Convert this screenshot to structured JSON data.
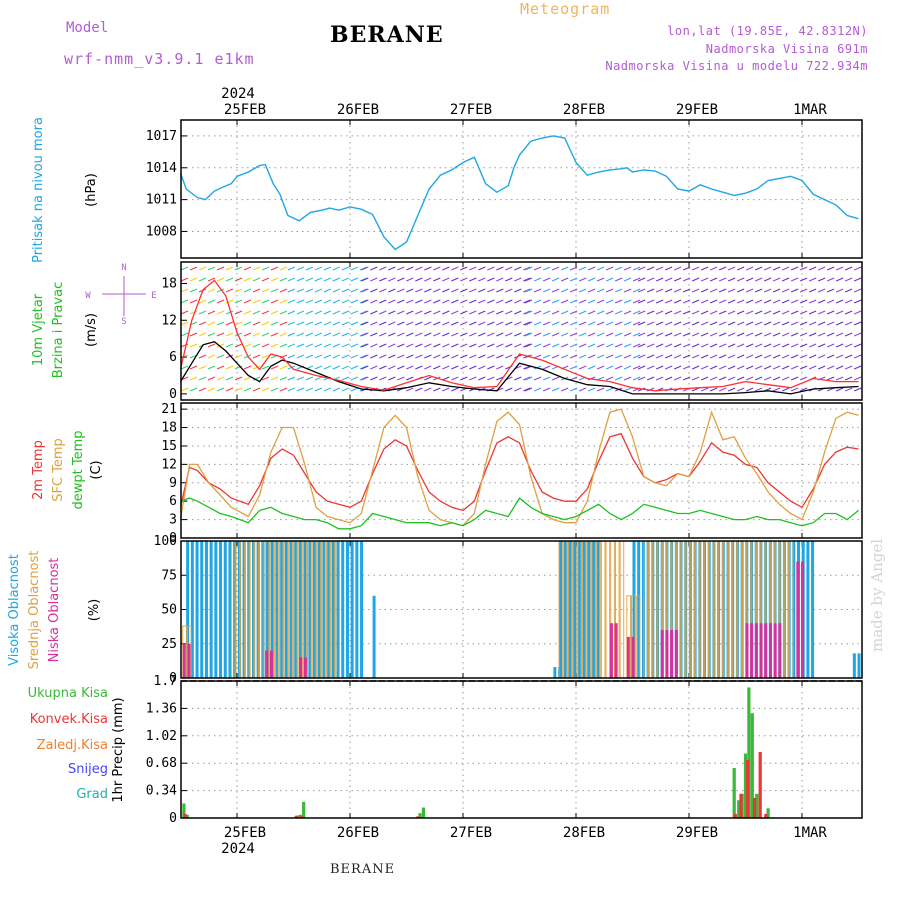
{
  "header": {
    "model_label": "Model",
    "model_name": "wrf-nmm_v3.9.1 e1km",
    "station": "BERANE",
    "meteogram": "Meteogram",
    "coords": "lon,lat (19.85E, 42.8312N)",
    "elevation": "Nadmorska Visina 691m",
    "model_elevation": "Nadmorska Visina u modelu 722.934m"
  },
  "footer": {
    "station": "BERANE"
  },
  "watermark": "made by Angel",
  "time_axis": {
    "labels": [
      "25FEB",
      "26FEB",
      "27FEB",
      "28FEB",
      "29FEB",
      "1MAR"
    ],
    "year": "2024",
    "colors": {
      "axis": "#000000",
      "grid": "#9a9a9a"
    }
  },
  "chart_data": [
    {
      "type": "line",
      "panel": "pressure",
      "ylabel_rotated": "Pritisak na nivou mora",
      "unit": "(hPa)",
      "yticks": [
        1008,
        1011,
        1014,
        1017
      ],
      "ylim": [
        1005.5,
        1018.5
      ],
      "x_days": [
        -0.5,
        -0.45,
        -0.35,
        -0.28,
        -0.2,
        -0.12,
        -0.05,
        0.0,
        0.1,
        0.2,
        0.25,
        0.32,
        0.38,
        0.45,
        0.55,
        0.65,
        0.75,
        0.82,
        0.9,
        1.0,
        1.1,
        1.2,
        1.3,
        1.4,
        1.5,
        1.6,
        1.7,
        1.8,
        1.9,
        2.0,
        2.1,
        2.2,
        2.3,
        2.4,
        2.45,
        2.5,
        2.6,
        2.7,
        2.8,
        2.9,
        3.0,
        3.1,
        3.2,
        3.3,
        3.4,
        3.45,
        3.5,
        3.6,
        3.7,
        3.8,
        3.9,
        4.0,
        4.1,
        4.2,
        4.3,
        4.4,
        4.5,
        4.6,
        4.7,
        4.8,
        4.9,
        5.0,
        5.1,
        5.2,
        5.3,
        5.4,
        5.5
      ],
      "series": [
        {
          "color": "#1ea6e6",
          "values": [
            1013.5,
            1012.0,
            1011.2,
            1011.0,
            1011.8,
            1012.2,
            1012.5,
            1013.2,
            1013.6,
            1014.2,
            1014.3,
            1012.5,
            1011.5,
            1009.5,
            1009.0,
            1009.8,
            1010.0,
            1010.2,
            1010.0,
            1010.3,
            1010.1,
            1009.6,
            1007.5,
            1006.3,
            1007.0,
            1009.5,
            1012.0,
            1013.3,
            1013.8,
            1014.5,
            1015.0,
            1012.5,
            1011.7,
            1012.3,
            1014.0,
            1015.2,
            1016.5,
            1016.8,
            1017.0,
            1016.8,
            1014.5,
            1013.3,
            1013.6,
            1013.8,
            1013.9,
            1014.0,
            1013.6,
            1013.8,
            1013.7,
            1013.2,
            1012.0,
            1011.8,
            1012.4,
            1012.0,
            1011.7,
            1011.4,
            1011.6,
            1012.0,
            1012.8,
            1013.0,
            1013.2,
            1012.8,
            1011.5,
            1011.0,
            1010.5,
            1009.5,
            1009.2
          ]
        }
      ]
    },
    {
      "type": "line",
      "panel": "wind",
      "ylabel_rotated_1": "10m Vjetar",
      "ylabel_rotated_2": "Brzina i Pravac",
      "unit": "(m/s)",
      "compass": {
        "n": "N",
        "s": "S",
        "w": "W",
        "e": "E"
      },
      "yticks": [
        0,
        6,
        12,
        18
      ],
      "ylim": [
        -1,
        21.5
      ],
      "x_days": [
        -0.5,
        -0.4,
        -0.3,
        -0.2,
        -0.1,
        0.0,
        0.1,
        0.2,
        0.3,
        0.4,
        0.5,
        0.7,
        0.9,
        1.1,
        1.3,
        1.5,
        1.7,
        1.9,
        2.1,
        2.3,
        2.5,
        2.7,
        2.9,
        3.1,
        3.3,
        3.5,
        3.7,
        3.9,
        4.1,
        4.3,
        4.5,
        4.7,
        4.9,
        5.1,
        5.3,
        5.5
      ],
      "series": [
        {
          "name": "speed",
          "color": "#000000",
          "values": [
            2.0,
            5.0,
            8.0,
            8.5,
            7.0,
            5.0,
            3.0,
            2.0,
            4.5,
            5.5,
            5.0,
            3.5,
            2.0,
            0.8,
            0.5,
            1.0,
            1.8,
            1.2,
            0.8,
            0.5,
            5.0,
            4.0,
            2.5,
            1.5,
            1.2,
            0.0,
            0.0,
            0.0,
            0.0,
            0.0,
            0.2,
            0.5,
            0.0,
            0.8,
            1.0,
            1.2
          ]
        },
        {
          "name": "gust",
          "color": "#ff3030",
          "values": [
            4.0,
            12.0,
            17.0,
            18.5,
            16.0,
            10.0,
            6.0,
            4.0,
            6.5,
            6.0,
            4.0,
            3.0,
            2.2,
            1.2,
            0.6,
            1.8,
            3.0,
            1.8,
            1.0,
            1.2,
            6.5,
            5.5,
            4.0,
            2.5,
            2.0,
            1.0,
            0.5,
            0.8,
            1.0,
            1.2,
            2.0,
            1.5,
            1.0,
            2.5,
            2.0,
            2.0
          ]
        }
      ]
    },
    {
      "type": "line",
      "panel": "temperature",
      "ylabel_rotated_1": "2m Temp",
      "ylabel_rotated_2": "SFC Temp",
      "ylabel_rotated_3": "dewpt Temp",
      "unit": "(C)",
      "yticks": [
        0,
        3,
        6,
        9,
        12,
        15,
        18,
        21
      ],
      "ylim": [
        0,
        22
      ],
      "x_days": [
        -0.5,
        -0.42,
        -0.35,
        -0.25,
        -0.15,
        -0.05,
        0.1,
        0.2,
        0.3,
        0.4,
        0.5,
        0.6,
        0.7,
        0.8,
        0.9,
        1.0,
        1.1,
        1.2,
        1.3,
        1.4,
        1.5,
        1.6,
        1.7,
        1.8,
        1.9,
        2.0,
        2.1,
        2.2,
        2.3,
        2.4,
        2.5,
        2.6,
        2.7,
        2.8,
        2.9,
        3.0,
        3.1,
        3.2,
        3.3,
        3.4,
        3.5,
        3.6,
        3.7,
        3.8,
        3.9,
        4.0,
        4.1,
        4.2,
        4.3,
        4.4,
        4.5,
        4.6,
        4.7,
        4.8,
        4.9,
        5.0,
        5.1,
        5.2,
        5.3,
        5.4,
        5.5
      ],
      "series": [
        {
          "name": "2m Temp",
          "color": "#ee3535",
          "values": [
            5.0,
            11.5,
            11.0,
            9.0,
            8.0,
            6.5,
            5.5,
            8.5,
            13.0,
            14.5,
            13.5,
            10.5,
            7.5,
            6.0,
            5.5,
            5.0,
            6.0,
            10.5,
            14.5,
            16.0,
            15.0,
            11.0,
            7.5,
            6.0,
            5.0,
            4.5,
            6.0,
            11.0,
            15.5,
            16.5,
            15.5,
            11.0,
            7.5,
            6.5,
            6.0,
            6.0,
            8.0,
            12.5,
            16.5,
            17.0,
            13.0,
            10.0,
            9.0,
            9.5,
            10.5,
            10.0,
            12.5,
            15.5,
            14.0,
            13.5,
            12.0,
            11.5,
            9.0,
            7.5,
            6.0,
            5.0,
            8.0,
            12.0,
            14.0,
            14.8,
            14.5
          ]
        },
        {
          "name": "SFC Temp",
          "color": "#e0a040",
          "values": [
            3.0,
            12.0,
            12.0,
            9.0,
            7.0,
            5.0,
            3.5,
            7.0,
            14.0,
            18.0,
            18.0,
            12.0,
            5.0,
            3.5,
            3.0,
            2.5,
            4.0,
            11.0,
            18.0,
            20.0,
            18.0,
            10.0,
            4.5,
            3.0,
            2.5,
            2.0,
            4.0,
            12.0,
            19.0,
            20.5,
            18.5,
            10.0,
            4.0,
            3.0,
            2.5,
            2.5,
            6.0,
            14.0,
            20.5,
            21.0,
            16.5,
            10.0,
            9.0,
            8.5,
            10.5,
            10.0,
            14.0,
            20.5,
            16.0,
            16.5,
            13.0,
            10.5,
            7.5,
            5.5,
            4.0,
            3.0,
            7.5,
            14.0,
            19.5,
            20.5,
            20.0
          ]
        },
        {
          "name": "dewpt Temp",
          "color": "#20c020",
          "values": [
            6.0,
            6.5,
            6.0,
            5.0,
            4.0,
            3.5,
            2.5,
            4.5,
            5.0,
            4.0,
            3.5,
            3.0,
            3.0,
            2.5,
            1.5,
            1.5,
            2.0,
            4.0,
            3.5,
            3.0,
            2.5,
            2.5,
            2.5,
            2.0,
            2.5,
            2.0,
            3.0,
            4.5,
            4.0,
            3.5,
            6.5,
            5.0,
            4.0,
            3.5,
            3.0,
            3.5,
            4.5,
            5.5,
            4.0,
            3.0,
            4.0,
            5.5,
            5.0,
            4.5,
            4.0,
            4.0,
            4.5,
            4.0,
            3.5,
            3.0,
            3.0,
            3.5,
            3.0,
            3.0,
            2.5,
            2.0,
            2.5,
            4.0,
            4.0,
            3.0,
            4.5
          ]
        }
      ]
    },
    {
      "type": "bar",
      "panel": "cloud",
      "ylabel_rotated_1": "Visoka Oblacnost",
      "ylabel_rotated_2": "Srednja Oblacnost",
      "ylabel_rotated_3": "Niska Oblacnost",
      "unit": "(%)",
      "yticks": [
        0,
        25,
        50,
        75,
        100
      ],
      "ylim": [
        0,
        100
      ],
      "series": [
        {
          "name": "Visoka",
          "color": "#1ea6e6",
          "cover": [
            [
              -0.45,
              1.1,
              100
            ],
            [
              1.2,
              1.24,
              60
            ],
            [
              2.8,
              2.85,
              8
            ],
            [
              2.85,
              3.2,
              100
            ],
            [
              3.5,
              5.1,
              100
            ],
            [
              5.45,
              5.5,
              18
            ]
          ]
        },
        {
          "name": "Srednja",
          "color": "#e0a040",
          "cover": [
            [
              -0.48,
              -0.43,
              38
            ],
            [
              -0.05,
              0.2,
              100
            ],
            [
              0.25,
              0.9,
              100
            ],
            [
              2.85,
              3.4,
              100
            ],
            [
              3.45,
              3.55,
              60
            ],
            [
              3.6,
              4.9,
              100
            ]
          ]
        },
        {
          "name": "Niska",
          "color": "#d6309a",
          "cover": [
            [
              -0.48,
              -0.43,
              25
            ],
            [
              0.25,
              0.3,
              20
            ],
            [
              0.55,
              0.6,
              15
            ],
            [
              3.3,
              3.35,
              40
            ],
            [
              3.45,
              3.5,
              30
            ],
            [
              3.75,
              3.9,
              35
            ],
            [
              4.5,
              4.8,
              40
            ],
            [
              4.95,
              5.0,
              85
            ]
          ]
        }
      ]
    },
    {
      "type": "bar",
      "panel": "precip",
      "legend_1": "Ukupna Kisa",
      "legend_2": "Konvek.Kisa",
      "legend_3": "Zaledj.Kisa",
      "legend_4": "Snijeg",
      "legend_5": "Grad",
      "ylabel_rotated": "1hr Precip (mm)",
      "yticks": [
        0,
        0.34,
        0.68,
        1.02,
        1.36,
        1.7
      ],
      "ylim": [
        0,
        1.7
      ],
      "legend_colors": [
        "#3ab83a",
        "#ee3535",
        "#f08030",
        "#4444ff",
        "#20b0b0"
      ],
      "series": [
        {
          "name": "Ukupna Kisa",
          "color": "#3ab83a",
          "x": [
            -0.47,
            -0.44,
            0.52,
            0.56,
            0.59,
            1.62,
            1.65,
            4.4,
            4.44,
            4.47,
            4.5,
            4.53,
            4.56,
            4.6,
            4.7
          ],
          "values": [
            0.18,
            0.04,
            0.02,
            0.04,
            0.2,
            0.06,
            0.13,
            0.62,
            0.22,
            0.3,
            0.8,
            1.62,
            1.3,
            0.3,
            0.12
          ]
        },
        {
          "name": "Konvek.Kisa",
          "color": "#ee3535",
          "x": [
            -0.46,
            0.53,
            0.57,
            1.6,
            4.41,
            4.46,
            4.52,
            4.58,
            4.63,
            4.68
          ],
          "values": [
            0.05,
            0.03,
            0.02,
            0.02,
            0.05,
            0.3,
            0.72,
            0.25,
            0.82,
            0.05
          ]
        }
      ]
    }
  ]
}
